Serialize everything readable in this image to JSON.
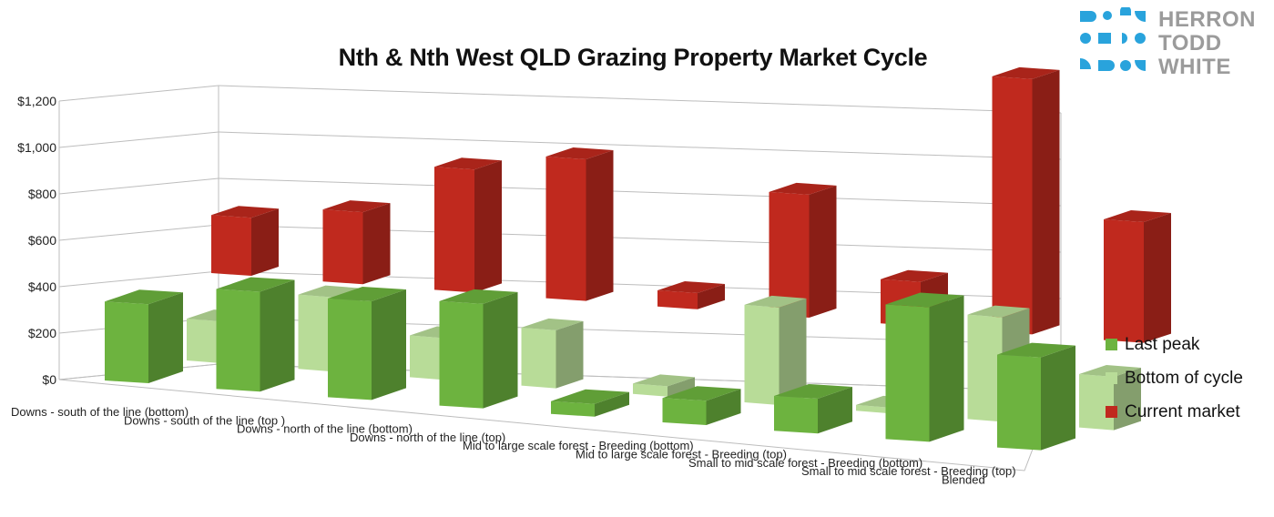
{
  "colors": {
    "last_peak": "#6db33f",
    "bottom_of_cycle": "#b8dc98",
    "current_market": "#c0291e",
    "brand_blue": "#29a3dc",
    "brand_grey": "#9b9b9b"
  },
  "brand": {
    "line1": "HERRON",
    "line2": "TODD",
    "line3": "WHITE"
  },
  "chart_data": {
    "type": "bar",
    "title": "Nth & Nth West QLD Grazing Property Market Cycle",
    "style": "3d-clustered",
    "grid": true,
    "legend_position": "right",
    "y_ticks": [
      "$0",
      "$200",
      "$400",
      "$600",
      "$800",
      "$1,000",
      "$1,200"
    ],
    "ylim": [
      0,
      1200
    ],
    "categories": [
      "Downs - south of the line (bottom)",
      "Downs - south of the line (top )",
      "Downs - north of the line (bottom)",
      "Downs - north of the line (top)",
      "Mid to large scale forest - Breeding (bottom)",
      "Mid to large scale forest - Breeding (top)",
      "Small to mid scale forest - Breeding (bottom)",
      "Small to mid scale forest - Breeding (top)",
      "Blended"
    ],
    "series": [
      {
        "name": "Last peak",
        "values": [
          340,
          430,
          425,
          450,
          55,
          105,
          150,
          580,
          400
        ]
      },
      {
        "name": "Bottom of cycle",
        "values": [
          180,
          320,
          180,
          250,
          45,
          420,
          25,
          450,
          230
        ]
      },
      {
        "name": "Current market",
        "values": [
          250,
          310,
          530,
          610,
          70,
          530,
          190,
          1100,
          520
        ]
      }
    ]
  }
}
